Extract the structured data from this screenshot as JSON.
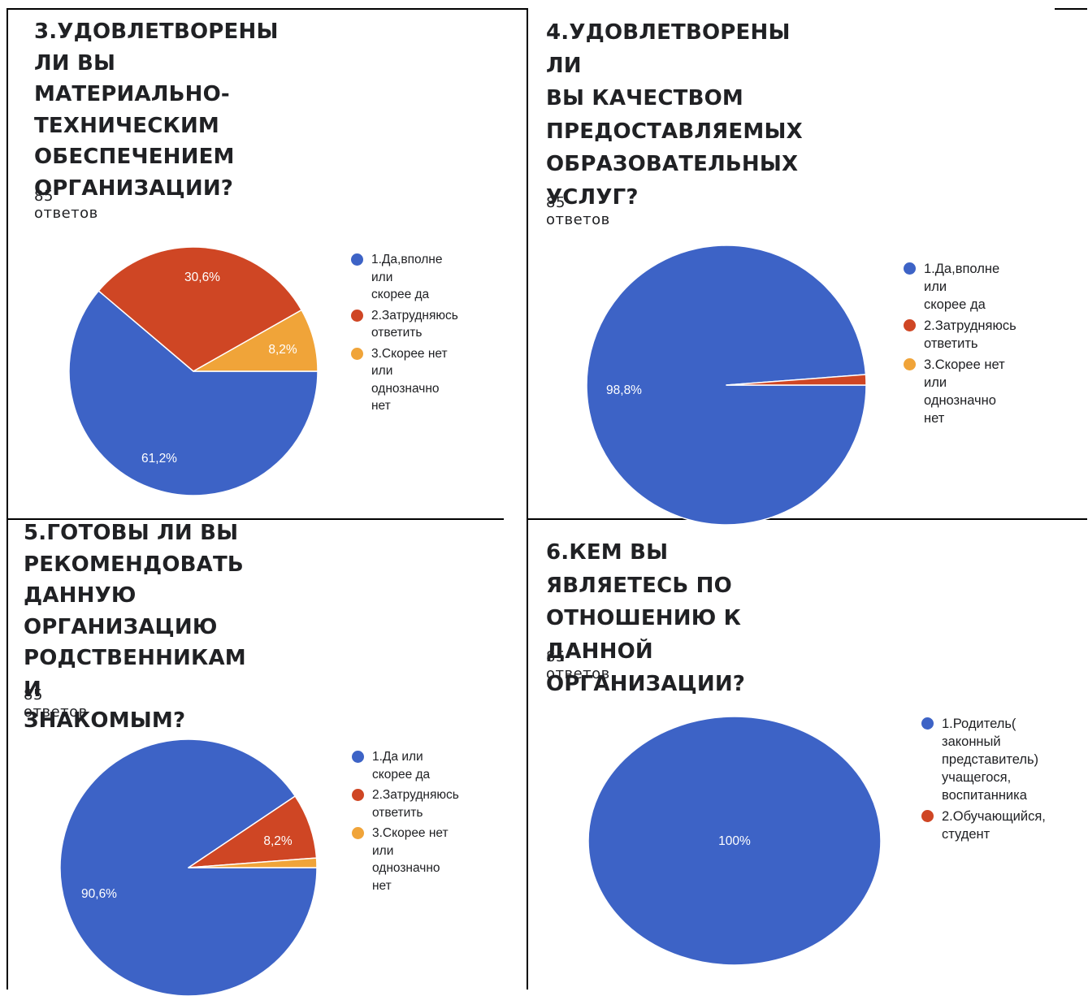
{
  "chart_data": [
    {
      "type": "pie",
      "title_lines": [
        "3.УДОВЛЕТВОРЕНЫ ЛИ ВЫ",
        "МАТЕРИАЛЬНО-",
        "ТЕХНИЧЕСКИМ",
        "ОБЕСПЕЧЕНИЕМ",
        "ОРГАНИЗАЦИИ?"
      ],
      "responses": "85 ответов",
      "slices": [
        {
          "label_lines": [
            "1.Да,вполне или",
            "скорее да"
          ],
          "value": 61.2,
          "display": "61,2%",
          "color": "#3d63c6"
        },
        {
          "label_lines": [
            "2.Затрудняюсь",
            "ответить"
          ],
          "value": 30.6,
          "display": "30,6%",
          "color": "#cf4624"
        },
        {
          "label_lines": [
            "3.Скорее нет или",
            "однозначно нет"
          ],
          "value": 8.2,
          "display": "8,2%",
          "color": "#f0a439"
        }
      ]
    },
    {
      "type": "pie",
      "title_lines": [
        "4.УДОВЛЕТВОРЕНЫ ЛИ",
        "ВЫ КАЧЕСТВОМ",
        "ПРЕДОСТАВЛЯЕМЫХ",
        "ОБРАЗОВАТЕЛЬНЫХ",
        "УСЛУГ?"
      ],
      "responses": "85 ответов",
      "slices": [
        {
          "label_lines": [
            "1.Да,вполне или",
            "скорее да"
          ],
          "value": 98.8,
          "display": "98,8%",
          "color": "#3d63c6"
        },
        {
          "label_lines": [
            "2.Затрудняюсь",
            "ответить"
          ],
          "value": 1.2,
          "display": "",
          "color": "#cf4624"
        },
        {
          "label_lines": [
            "3.Скорее нет или",
            "однозначно нет"
          ],
          "value": 0,
          "display": "",
          "color": "#f0a439"
        }
      ]
    },
    {
      "type": "pie",
      "title_lines": [
        "5.ГОТОВЫ ЛИ ВЫ",
        "РЕКОМЕНДОВАТЬ",
        "ДАННУЮ ОРГАНИЗАЦИЮ",
        "РОДСТВЕННИКАМ И",
        "ЗНАКОМЫМ?"
      ],
      "responses": "85 ответов",
      "slices": [
        {
          "label_lines": [
            "1.Да или скорее да"
          ],
          "value": 90.6,
          "display": "90,6%",
          "color": "#3d63c6"
        },
        {
          "label_lines": [
            "2.Затрудняюсь",
            "ответить"
          ],
          "value": 8.2,
          "display": "8,2%",
          "color": "#cf4624"
        },
        {
          "label_lines": [
            "3.Скорее нет или",
            "однозначно нет"
          ],
          "value": 1.2,
          "display": "",
          "color": "#f0a439"
        }
      ]
    },
    {
      "type": "pie",
      "title_lines": [
        "6.КЕМ ВЫ ЯВЛЯЕТЕСЬ ПО",
        "ОТНОШЕНИЮ К ДАННОЙ",
        "ОРГАНИЗАЦИИ?"
      ],
      "responses": "85 ответов",
      "slices": [
        {
          "label_lines": [
            "1.Родитель(",
            "законный",
            "представитель)",
            "учащегося,",
            "воспитанника"
          ],
          "value": 100,
          "display": "100%",
          "color": "#3d63c6"
        },
        {
          "label_lines": [
            "2.Обучающийся,",
            "студент"
          ],
          "value": 0,
          "display": "",
          "color": "#cf4624"
        }
      ]
    }
  ]
}
